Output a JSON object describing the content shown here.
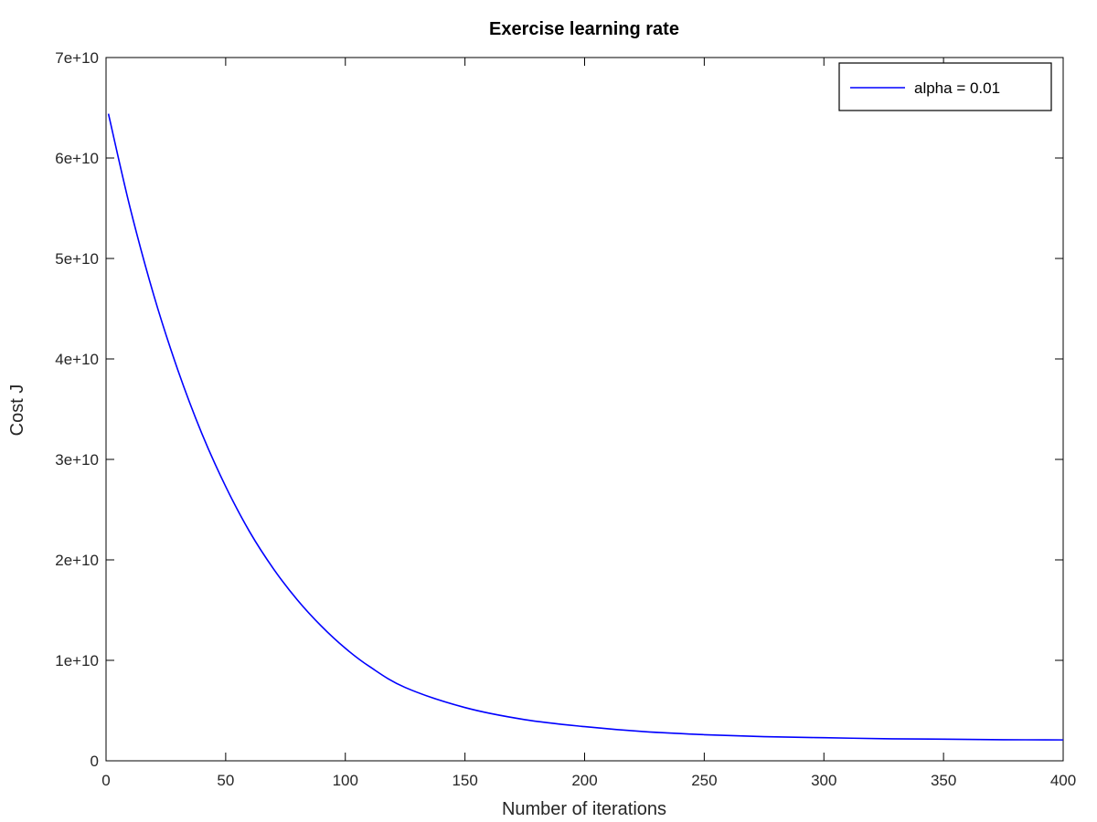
{
  "chart_data": {
    "type": "line",
    "title": "Exercise learning rate",
    "xlabel": "Number of iterations",
    "ylabel": "Cost J",
    "xlim": [
      0,
      400
    ],
    "ylim": [
      0,
      70000000000
    ],
    "x_ticks": [
      0,
      50,
      100,
      150,
      200,
      250,
      300,
      350,
      400
    ],
    "x_tick_labels": [
      "0",
      "50",
      "100",
      "150",
      "200",
      "250",
      "300",
      "350",
      "400"
    ],
    "y_ticks": [
      0,
      10000000000,
      20000000000,
      30000000000,
      40000000000,
      50000000000,
      60000000000,
      70000000000
    ],
    "y_tick_labels": [
      "0",
      "1e+10",
      "2e+10",
      "3e+10",
      "4e+10",
      "5e+10",
      "6e+10",
      "7e+10"
    ],
    "grid": false,
    "legend_position": "top-right",
    "series": [
      {
        "name": "alpha = 0.01",
        "color": "#0000ff",
        "points": [
          [
            1,
            64400000000
          ],
          [
            10,
            55100000000
          ],
          [
            20,
            46300000000
          ],
          [
            30,
            38900000000
          ],
          [
            40,
            32600000000
          ],
          [
            50,
            27300000000
          ],
          [
            60,
            22800000000
          ],
          [
            70,
            19100000000
          ],
          [
            80,
            16000000000
          ],
          [
            90,
            13400000000
          ],
          [
            100,
            11200000000
          ],
          [
            110,
            9400000000
          ],
          [
            125,
            7300000000
          ],
          [
            150,
            5300000000
          ],
          [
            175,
            4100000000
          ],
          [
            200,
            3400000000
          ],
          [
            225,
            2900000000
          ],
          [
            250,
            2600000000
          ],
          [
            275,
            2400000000
          ],
          [
            300,
            2300000000
          ],
          [
            325,
            2200000000
          ],
          [
            350,
            2150000000
          ],
          [
            375,
            2100000000
          ],
          [
            400,
            2080000000
          ]
        ]
      }
    ]
  }
}
